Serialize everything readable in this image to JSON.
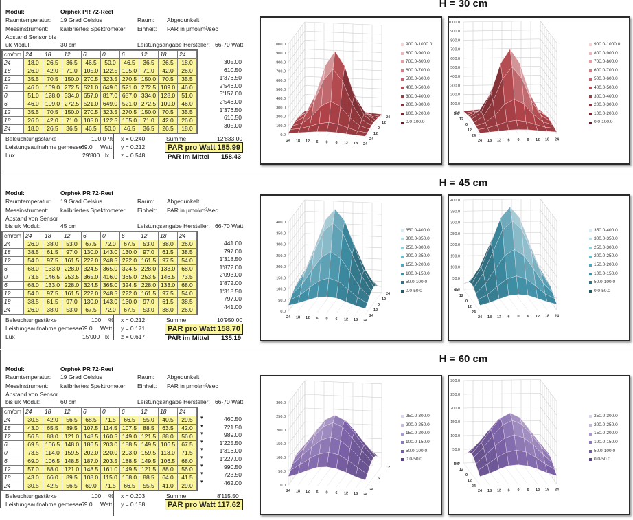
{
  "sections": [
    {
      "title": "H = 30 cm",
      "info": {
        "modul_label": "Modul:",
        "modul_value": "Orphek PR  72-Reef",
        "temp_label": "Raumtemperatur:",
        "temp_value": "19 Grad Celsius",
        "raum_label": "Raum:",
        "raum_value": "Abgedunkelt",
        "instr_label": "Messinstrument:",
        "instr_value": "kalibriertes Spektrometer",
        "einheit_label": "Einheit:",
        "einheit_value": "PAR in µmol/m²/sec",
        "abstand_label_1": "Abstand Sensor bis",
        "abstand_label_2": "uk Modul:",
        "abstand_value": "30 cm",
        "leistung_label": "Leistungsangabe Hersteller:",
        "leistung_value": "66-70 Watt"
      },
      "corner": "cm/cm",
      "col_headers": [
        "24",
        "18",
        "12",
        "6",
        "0",
        "6",
        "12",
        "18",
        "24"
      ],
      "row_headers": [
        "24",
        "18",
        "12",
        "6",
        "0",
        "6",
        "12",
        "18",
        "24"
      ],
      "rows": [
        [
          "18.0",
          "26.5",
          "36.5",
          "46.5",
          "50.0",
          "46.5",
          "36.5",
          "26.5",
          "18.0"
        ],
        [
          "26.0",
          "42.0",
          "71.0",
          "105.0",
          "122.5",
          "105.0",
          "71.0",
          "42.0",
          "26.0"
        ],
        [
          "35.5",
          "70.5",
          "150.0",
          "270.5",
          "323.5",
          "270.5",
          "150.0",
          "70.5",
          "35.5"
        ],
        [
          "46.0",
          "109.0",
          "272.5",
          "521.0",
          "649.0",
          "521.0",
          "272.5",
          "109.0",
          "46.0"
        ],
        [
          "51.0",
          "128.0",
          "334.0",
          "657.0",
          "817.0",
          "657.0",
          "334.0",
          "128.0",
          "51.0"
        ],
        [
          "46.0",
          "109.0",
          "272.5",
          "521.0",
          "649.0",
          "521.0",
          "272.5",
          "109.0",
          "46.0"
        ],
        [
          "35.5",
          "70.5",
          "150.0",
          "270.5",
          "323.5",
          "270.5",
          "150.0",
          "70.5",
          "35.5"
        ],
        [
          "26.0",
          "42.0",
          "71.0",
          "105.0",
          "122.5",
          "105.0",
          "71.0",
          "42.0",
          "26.0"
        ],
        [
          "18.0",
          "26.5",
          "36.5",
          "46.5",
          "50.0",
          "46.5",
          "36.5",
          "26.5",
          "18.0"
        ]
      ],
      "row_sums": [
        "305.00",
        "610.50",
        "1'376.50",
        "2'546.00",
        "3'157.00",
        "2'546.00",
        "1'376.50",
        "610.50",
        "305.00"
      ],
      "row_sum_marks": false,
      "bottom": {
        "beleuchtung_label": "Beleuchtungsstärke",
        "beleuchtung_value": "100.0",
        "beleuchtung_unit": "%",
        "leistung_label": "Leistungsaufnahme gemesse",
        "leistung_value": "69.0",
        "leistung_unit": "Watt",
        "lux_label": "Lux",
        "lux_value": "29'800",
        "lux_unit": "lx",
        "x": "x = 0.240",
        "y": "y = 0.212",
        "z": "z = 0.548",
        "summe_label": "Summe",
        "summe_value": "12'833.00",
        "par_watt_label": "PAR pro Watt",
        "par_watt_value": "185.99",
        "par_mittel_label": "PAR im Mittel",
        "par_mittel_value": "158.43"
      }
    },
    {
      "title": "H = 45 cm",
      "info": {
        "modul_label": "Modul:",
        "modul_value": "Orphek PR  72-Reef",
        "temp_label": "Raumtemperatur:",
        "temp_value": "19 Grad Celsius",
        "raum_label": "Raum:",
        "raum_value": "Abgedunkelt",
        "instr_label": "Messinstrument:",
        "instr_value": "kalibriertes Spektrometer",
        "einheit_label": "Einheit:",
        "einheit_value": "PAR in µmol/m²/sec",
        "abstand_label_1": "Abstand von Sensor",
        "abstand_label_2": "bis uk Modul:",
        "abstand_value": "45 cm",
        "leistung_label": "Leistungsangabe Hersteller:",
        "leistung_value": "66-70 Watt"
      },
      "corner": "cm/cm",
      "col_headers": [
        "24",
        "18",
        "12",
        "6",
        "0",
        "6",
        "12",
        "18",
        "24"
      ],
      "row_headers": [
        "24",
        "18",
        "12",
        "6",
        "0",
        "6",
        "12",
        "18",
        "24"
      ],
      "rows": [
        [
          "26.0",
          "38.0",
          "53.0",
          "67.5",
          "72.0",
          "67.5",
          "53.0",
          "38.0",
          "26.0"
        ],
        [
          "38.5",
          "61.5",
          "97.0",
          "130.0",
          "143.0",
          "130.0",
          "97.0",
          "61.5",
          "38.5"
        ],
        [
          "54.0",
          "97.5",
          "161.5",
          "222.0",
          "248.5",
          "222.0",
          "161.5",
          "97.5",
          "54.0"
        ],
        [
          "68.0",
          "133.0",
          "228.0",
          "324.5",
          "365.0",
          "324.5",
          "228.0",
          "133.0",
          "68.0"
        ],
        [
          "73.5",
          "146.5",
          "253.5",
          "365.0",
          "416.0",
          "365.0",
          "253.5",
          "146.5",
          "73.5"
        ],
        [
          "68.0",
          "133.0",
          "228.0",
          "324.5",
          "365.0",
          "324.5",
          "228.0",
          "133.0",
          "68.0"
        ],
        [
          "54.0",
          "97.5",
          "161.5",
          "222.0",
          "248.5",
          "222.0",
          "161.5",
          "97.5",
          "54.0"
        ],
        [
          "38.5",
          "61.5",
          "97.0",
          "130.0",
          "143.0",
          "130.0",
          "97.0",
          "61.5",
          "38.5"
        ],
        [
          "26.0",
          "38.0",
          "53.0",
          "67.5",
          "72.0",
          "67.5",
          "53.0",
          "38.0",
          "26.0"
        ]
      ],
      "row_sums": [
        "441.00",
        "797.00",
        "1'318.50",
        "1'872.00",
        "2'093.00",
        "1'872.00",
        "1'318.50",
        "797.00",
        "441.00"
      ],
      "row_sum_marks": false,
      "bottom": {
        "beleuchtung_label": "Beleuchtungsstärke",
        "beleuchtung_value": "100",
        "beleuchtung_unit": "%",
        "leistung_label": "Leistungsaufnahme gemesse",
        "leistung_value": "69.0",
        "leistung_unit": "Watt",
        "lux_label": "Lux",
        "lux_value": "15'000",
        "lux_unit": "lx",
        "x": "x = 0.212",
        "y": "y = 0.171",
        "z": "z = 0.617",
        "summe_label": "Summe",
        "summe_value": "10'950.00",
        "par_watt_label": "PAR pro Watt",
        "par_watt_value": "158.70",
        "par_mittel_label": "PAR im Mittel",
        "par_mittel_value": "135.19"
      }
    },
    {
      "title": "H = 60 cm",
      "info": {
        "modul_label": "Modul:",
        "modul_value": "Orphek PR  72-Reef",
        "temp_label": "Raumtemperatur:",
        "temp_value": "19 Grad Celsius",
        "raum_label": "Raum:",
        "raum_value": "Abgedunkelt",
        "instr_label": "Messinstrument:",
        "instr_value": "kalibriertes Spektrometer",
        "einheit_label": "Einheit:",
        "einheit_value": "PAR in µmol/m²/sec",
        "abstand_label_1": "Abstand von Sensor",
        "abstand_label_2": "bis uk Modul:",
        "abstand_value": "60 cm",
        "leistung_label": "Leistungsangabe Hersteller:",
        "leistung_value": "66-70 Watt"
      },
      "corner": "cm/cm",
      "col_headers": [
        "24",
        "18",
        "12",
        "6",
        "0",
        "6",
        "12",
        "18",
        "24"
      ],
      "row_headers": [
        "24",
        "18",
        "12",
        "6",
        "0",
        "6",
        "12",
        "18",
        "24"
      ],
      "rows": [
        [
          "30.5",
          "42.0",
          "56.5",
          "68.5",
          "71.5",
          "66.5",
          "55.0",
          "40.5",
          "29.5"
        ],
        [
          "43.0",
          "65.5",
          "89.5",
          "107.5",
          "114.5",
          "107.5",
          "88.5",
          "63.5",
          "42.0"
        ],
        [
          "56.5",
          "88.0",
          "121.0",
          "148.5",
          "160.5",
          "149.0",
          "121.5",
          "88.0",
          "56.0"
        ],
        [
          "69.5",
          "106.5",
          "148.0",
          "186.5",
          "203.0",
          "188.5",
          "149.5",
          "106.5",
          "67.5"
        ],
        [
          "73.5",
          "114.0",
          "159.5",
          "202.0",
          "220.0",
          "203.0",
          "159.5",
          "113.0",
          "71.5"
        ],
        [
          "69.0",
          "106.5",
          "148.5",
          "187.0",
          "203.5",
          "188.5",
          "149.5",
          "106.5",
          "68.0"
        ],
        [
          "57.0",
          "88.0",
          "121.0",
          "148.5",
          "161.0",
          "149.5",
          "121.5",
          "88.0",
          "56.0"
        ],
        [
          "43.0",
          "66.0",
          "89.5",
          "108.0",
          "115.0",
          "108.0",
          "88.5",
          "64.0",
          "41.5"
        ],
        [
          "30.5",
          "42.5",
          "56.5",
          "69.0",
          "71.5",
          "66.5",
          "55.5",
          "41.0",
          "29.0"
        ]
      ],
      "row_sums": [
        "460.50",
        "721.50",
        "989.00",
        "1'225.50",
        "1'316.00",
        "1'227.00",
        "990.50",
        "723.50",
        "462.00"
      ],
      "row_sum_marks": true,
      "bottom": {
        "beleuchtung_label": "Beleuchtungsstärke",
        "beleuchtung_value": "100",
        "beleuchtung_unit": "%",
        "leistung_label": "Leistungsaufnahme gemesse",
        "leistung_value": "69.0",
        "leistung_unit": "Watt",
        "x": "x = 0.203",
        "y": "y = 0.158",
        "summe_label": "Summe",
        "summe_value": "8'115.50",
        "par_watt_label": "PAR pro Watt",
        "par_watt_value": "117.62"
      }
    }
  ],
  "chart_data": [
    {
      "type": "surface",
      "title": "H = 30 cm",
      "view": "front-left",
      "x_ticks": [
        "24",
        "18",
        "12",
        "6",
        "0",
        "6",
        "12",
        "18",
        "24"
      ],
      "depth_ticks": [
        "24",
        "12",
        "0",
        "12",
        "24"
      ],
      "z_ticks": [
        "0.0",
        "100.0",
        "200.0",
        "300.0",
        "400.0",
        "500.0",
        "600.0",
        "700.0",
        "800.0",
        "900.0",
        "1000.0"
      ],
      "zlim": [
        0,
        1000
      ],
      "legend": [
        "900.0-1000.0",
        "800.0-900.0",
        "700.0-800.0",
        "600.0-700.0",
        "500.0-600.0",
        "400.0-500.0",
        "300.0-400.0",
        "200.0-300.0",
        "100.0-200.0",
        "0.0-100.0"
      ],
      "legend_position": "right",
      "color": "#b0444a",
      "legend_colors": [
        "#f7d4d6",
        "#efb7ba",
        "#e79ca0",
        "#d97d82",
        "#c9626a",
        "#b54b53",
        "#a03c44",
        "#8c3239",
        "#782930",
        "#662128"
      ],
      "values_source": "sections.0.rows"
    },
    {
      "type": "surface",
      "title": "H = 30 cm",
      "view": "front-right",
      "x_ticks": [
        "24",
        "18",
        "12",
        "6",
        "0",
        "6",
        "12",
        "18",
        "24"
      ],
      "depth_ticks": [
        "24",
        "12",
        "0",
        "12",
        "0.0"
      ],
      "z_ticks": [
        "0.0",
        "100.0",
        "200.0",
        "300.0",
        "400.0",
        "500.0",
        "600.0",
        "700.0",
        "800.0",
        "900.0",
        "1000.0"
      ],
      "zlim": [
        0,
        1000
      ],
      "legend": [
        "900.0-1000.0",
        "800.0-900.0",
        "700.0-800.0",
        "600.0-700.0",
        "500.0-600.0",
        "400.0-500.0",
        "300.0-400.0",
        "200.0-300.0",
        "100.0-200.0",
        "0.0-100.0"
      ],
      "legend_position": "right",
      "color": "#b0444a",
      "legend_colors": [
        "#f7d4d6",
        "#efb7ba",
        "#e79ca0",
        "#d97d82",
        "#c9626a",
        "#b54b53",
        "#a03c44",
        "#8c3239",
        "#782930",
        "#662128"
      ],
      "values_source": "sections.0.rows"
    },
    {
      "type": "surface",
      "title": "H = 45 cm",
      "view": "front-left",
      "x_ticks": [
        "24",
        "18",
        "12",
        "6",
        "0",
        "6",
        "12",
        "18",
        "24"
      ],
      "depth_ticks": [
        "24",
        "12",
        "0",
        "12",
        "24"
      ],
      "z_ticks": [
        "0.0",
        "50.0",
        "100.0",
        "150.0",
        "200.0",
        "250.0",
        "300.0",
        "350.0",
        "400.0"
      ],
      "zlim": [
        0,
        400
      ],
      "legend": [
        "350.0-400.0",
        "300.0-350.0",
        "250.0-300.0",
        "200.0-250.0",
        "150.0-200.0",
        "100.0-150.0",
        "50.0-100.0",
        "0.0-50.0"
      ],
      "legend_position": "right",
      "color": "#3e8fa6",
      "legend_colors": [
        "#d6eef5",
        "#b5e0ec",
        "#8fcfe0",
        "#6cbcd1",
        "#4fa6bd",
        "#3d8ea6",
        "#2f7389",
        "#235a6d"
      ],
      "values_source": "sections.1.rows"
    },
    {
      "type": "surface",
      "title": "H = 45 cm",
      "view": "front-right",
      "x_ticks": [
        "24",
        "18",
        "12",
        "6",
        "0",
        "6",
        "12",
        "18",
        "24"
      ],
      "depth_ticks": [
        "24",
        "12",
        "0",
        "12",
        "0.0"
      ],
      "z_ticks": [
        "0.0",
        "50.0",
        "100.0",
        "150.0",
        "200.0",
        "250.0",
        "300.0",
        "350.0",
        "400.0"
      ],
      "zlim": [
        0,
        400
      ],
      "legend": [
        "350.0-400.0",
        "300.0-350.0",
        "250.0-300.0",
        "200.0-250.0",
        "150.0-200.0",
        "100.0-150.0",
        "50.0-100.0",
        "0.0-50.0"
      ],
      "legend_position": "right",
      "color": "#3e8fa6",
      "legend_colors": [
        "#d6eef5",
        "#b5e0ec",
        "#8fcfe0",
        "#6cbcd1",
        "#4fa6bd",
        "#3d8ea6",
        "#2f7389",
        "#235a6d"
      ],
      "values_source": "sections.1.rows"
    },
    {
      "type": "surface",
      "title": "H = 60 cm",
      "view": "front-left",
      "x_ticks": [
        "24",
        "18",
        "12",
        "6",
        "0",
        "6",
        "12",
        "18",
        "24"
      ],
      "depth_ticks": [
        "24",
        "6",
        "12"
      ],
      "z_ticks": [
        "0.0",
        "50.0",
        "100.0",
        "150.0",
        "200.0",
        "250.0",
        "300.0"
      ],
      "zlim": [
        0,
        300
      ],
      "legend": [
        "250.0-300.0",
        "200.0-250.0",
        "150.0-200.0",
        "100.0-150.0",
        "50.0-100.0",
        "0.0-50.0"
      ],
      "legend_position": "right",
      "color": "#7b62a8",
      "legend_colors": [
        "#ddd3ee",
        "#c7b8e3",
        "#ab97d2",
        "#8e78bd",
        "#725da3",
        "#574586"
      ],
      "values_source": "sections.2.rows"
    },
    {
      "type": "surface",
      "title": "H = 60 cm",
      "view": "front-right",
      "x_ticks": [
        "24",
        "18",
        "12",
        "6",
        "0",
        "6",
        "12",
        "18",
        "24"
      ],
      "depth_ticks": [
        "24",
        "12",
        "0",
        "12",
        "0.0"
      ],
      "z_ticks": [
        "0.0",
        "50.0",
        "100.0",
        "150.0",
        "200.0",
        "250.0",
        "300.0"
      ],
      "zlim": [
        0,
        300
      ],
      "legend": [
        "250.0-300.0",
        "200.0-250.0",
        "150.0-200.0",
        "100.0-150.0",
        "50.0-100.0",
        "0.0-50.0"
      ],
      "legend_position": "right",
      "color": "#7b62a8",
      "legend_colors": [
        "#ddd3ee",
        "#c7b8e3",
        "#ab97d2",
        "#8e78bd",
        "#725da3",
        "#574586"
      ],
      "values_source": "sections.2.rows"
    }
  ]
}
